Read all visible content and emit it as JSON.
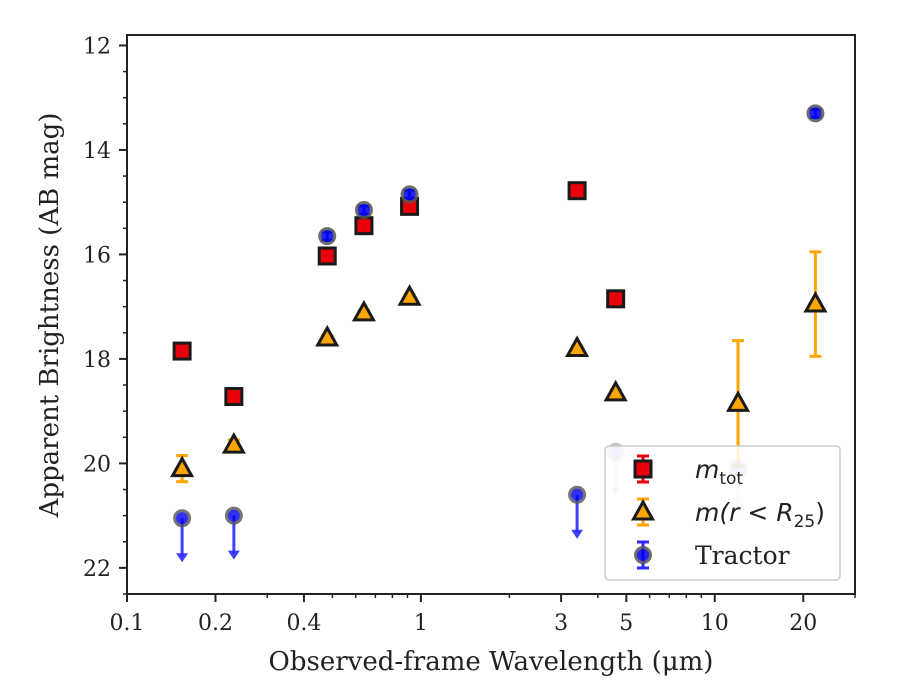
{
  "chart_data": {
    "type": "scatter",
    "xlabel": "Observed-frame Wavelength (μm)",
    "ylabel": "Apparent Brightness (AB mag)",
    "xscale": "log",
    "xlim": [
      0.1,
      30
    ],
    "ylim": [
      22.5,
      11.8
    ],
    "y_inverted": true,
    "xticks": [
      0.1,
      0.2,
      0.4,
      1,
      3,
      5,
      10,
      20
    ],
    "xtick_labels": [
      "0.1",
      "0.2",
      "0.4",
      "1",
      "3",
      "5",
      "10",
      "20"
    ],
    "yticks": [
      12,
      14,
      16,
      18,
      20,
      22
    ],
    "ytick_labels": [
      "12",
      "14",
      "16",
      "18",
      "20",
      "22"
    ],
    "legend_position": "lower-right",
    "series": [
      {
        "name": "m_tot",
        "marker": "square",
        "color": "#e8000b",
        "edge_color": "#1a1a1a",
        "points": [
          {
            "x": 0.154,
            "y": 17.85,
            "err": 0.1
          },
          {
            "x": 0.231,
            "y": 18.72,
            "err": 0.1
          },
          {
            "x": 0.48,
            "y": 16.03,
            "err": 0.08
          },
          {
            "x": 0.64,
            "y": 15.45,
            "err": 0.08
          },
          {
            "x": 0.915,
            "y": 15.08,
            "err": 0.08
          },
          {
            "x": 3.4,
            "y": 14.78,
            "err": 0.08
          },
          {
            "x": 4.6,
            "y": 16.85,
            "err": 0.08
          }
        ]
      },
      {
        "name": "m(r<R25)",
        "marker": "triangle",
        "color": "#ffa500",
        "edge_color": "#1a1a1a",
        "points": [
          {
            "x": 0.154,
            "y": 20.1,
            "err": 0.25
          },
          {
            "x": 0.231,
            "y": 19.65,
            "err": 0.1
          },
          {
            "x": 0.48,
            "y": 17.6,
            "err": 0.05
          },
          {
            "x": 0.64,
            "y": 17.12,
            "err": 0.05
          },
          {
            "x": 0.915,
            "y": 16.82,
            "err": 0.05
          },
          {
            "x": 3.4,
            "y": 17.8,
            "err": 0.05
          },
          {
            "x": 4.6,
            "y": 18.65,
            "err": 0.05
          },
          {
            "x": 12.0,
            "y": 18.85,
            "err": 1.2
          },
          {
            "x": 22.0,
            "y": 16.95,
            "err": 1.0
          }
        ]
      },
      {
        "name": "Tractor",
        "marker": "circle",
        "color": "#0000ee",
        "edge_color": "#555555",
        "points": [
          {
            "x": 0.154,
            "y": 21.05,
            "upper_limit": true
          },
          {
            "x": 0.231,
            "y": 21.0,
            "upper_limit": true
          },
          {
            "x": 0.48,
            "y": 15.65,
            "err": 0.08
          },
          {
            "x": 0.64,
            "y": 15.15,
            "err": 0.08
          },
          {
            "x": 0.915,
            "y": 14.85,
            "err": 0.08
          },
          {
            "x": 3.4,
            "y": 20.6,
            "upper_limit": true
          },
          {
            "x": 4.6,
            "y": 19.78,
            "upper_limit": true
          },
          {
            "x": 12.0,
            "y": 20.1,
            "upper_limit": true
          },
          {
            "x": 22.0,
            "y": 13.3,
            "err": 0.08
          }
        ]
      }
    ],
    "legend": [
      {
        "label": "m",
        "sub": "tot"
      },
      {
        "label": "m(r < R",
        "sub": "25",
        "tail": ")"
      },
      {
        "label": "Tractor"
      }
    ]
  }
}
